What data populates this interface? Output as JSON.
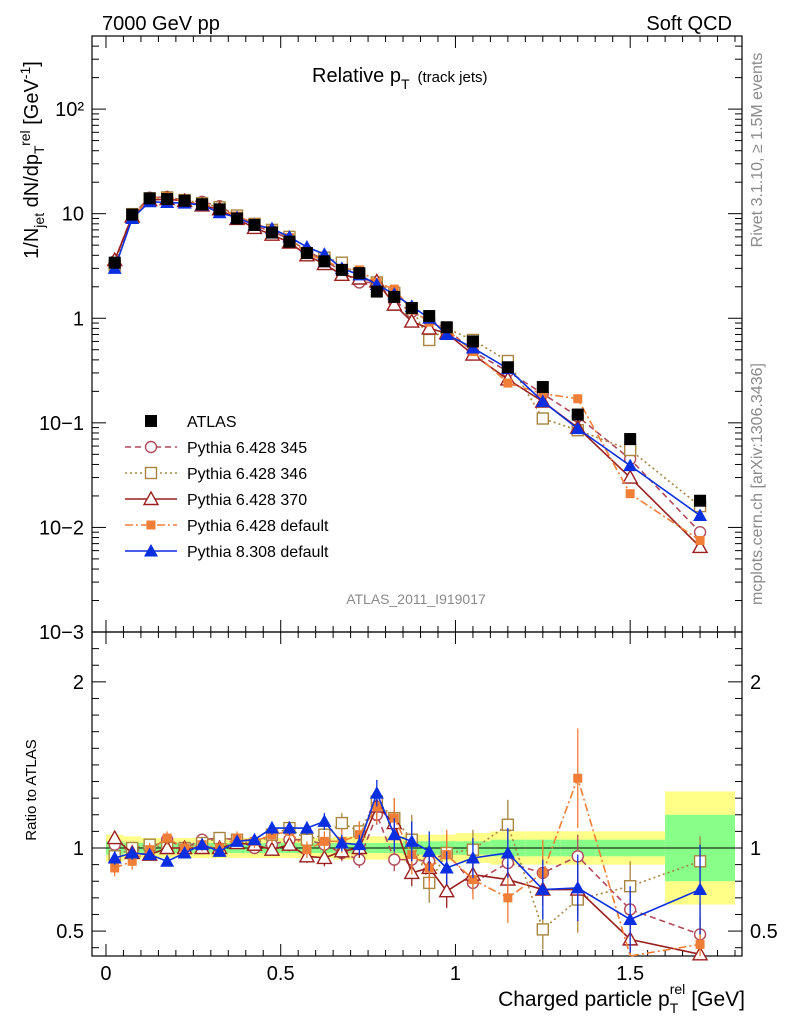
{
  "header": {
    "left": "7000 GeV pp",
    "right": "Soft QCD"
  },
  "side": {
    "rivet": "Rivet 3.1.10, ≥ 1.5M events",
    "mcplots": "mcplots.cern.ch [arXiv:1306.3436]"
  },
  "colors": {
    "atlas": "#000000",
    "p345": "#b04a5a",
    "p346": "#a88540",
    "p370": "#9a1f1f",
    "p6def": "#f07e36",
    "p8def": "#0a2fe0",
    "band_outer": "#ffff88",
    "band_inner": "#88ff88"
  },
  "chart_data": [
    {
      "type": "line",
      "title": "Relative p_T (track jets)",
      "title_main": "Relative p",
      "title_sub": "T",
      "title_extra": "(track jets)",
      "ylabel": "1/N_jet dN/dp_T^rel [GeV^-1]",
      "xlabel": "",
      "yscale": "log",
      "xlim": [
        -0.04,
        1.82
      ],
      "ylim": [
        0.001,
        500
      ],
      "y_ticks": [
        {
          "value": 0.001,
          "label": "10−3"
        },
        {
          "value": 0.01,
          "label": "10−2"
        },
        {
          "value": 0.1,
          "label": "10−1"
        },
        {
          "value": 1,
          "label": "1"
        },
        {
          "value": 10,
          "label": "10"
        },
        {
          "value": 100,
          "label": "10²"
        }
      ],
      "reference_label": "ATLAS_2011_I919017",
      "x": [
        0.025,
        0.075,
        0.125,
        0.175,
        0.225,
        0.275,
        0.325,
        0.375,
        0.425,
        0.475,
        0.525,
        0.575,
        0.625,
        0.675,
        0.725,
        0.775,
        0.825,
        0.875,
        0.925,
        0.975,
        1.05,
        1.15,
        1.25,
        1.35,
        1.5,
        1.7
      ],
      "series": [
        {
          "name": "ATLAS",
          "key": "atlas",
          "marker": "square-filled",
          "values": [
            3.4,
            9.8,
            14.0,
            13.8,
            13.3,
            12.3,
            11.0,
            9.0,
            7.8,
            6.6,
            5.4,
            4.2,
            3.5,
            2.9,
            2.7,
            1.8,
            1.6,
            1.25,
            1.05,
            0.82,
            0.6,
            0.34,
            0.22,
            0.12,
            0.07,
            0.018
          ]
        },
        {
          "name": "Pythia 6.428 345",
          "key": "p345",
          "marker": "circle-open",
          "dash": "6,4",
          "values": [
            3.5,
            9.8,
            14.2,
            14.5,
            13.4,
            13.0,
            11.8,
            9.5,
            7.6,
            6.8,
            5.7,
            4.4,
            3.6,
            2.8,
            2.2,
            2.2,
            1.45,
            1.15,
            0.95,
            0.8,
            0.48,
            0.31,
            0.19,
            0.115,
            0.045,
            0.009
          ]
        },
        {
          "name": "Pythia 6.428 346",
          "key": "p346",
          "marker": "square-open",
          "dash": "2,3",
          "values": [
            3.2,
            9.9,
            14.0,
            14.3,
            13.5,
            12.6,
            11.5,
            9.6,
            8.0,
            7.0,
            6.0,
            4.1,
            3.8,
            3.4,
            2.5,
            2.2,
            1.75,
            1.25,
            0.62,
            0.8,
            0.62,
            0.39,
            0.11,
            0.085,
            0.055,
            0.016
          ]
        },
        {
          "name": "Pythia 6.428 370",
          "key": "p370",
          "marker": "triangle-open",
          "dash": "",
          "values": [
            3.6,
            9.4,
            13.5,
            13.8,
            13.2,
            12.0,
            11.0,
            8.9,
            7.3,
            6.3,
            5.3,
            4.0,
            3.3,
            2.6,
            2.4,
            2.25,
            1.35,
            0.93,
            0.8,
            0.72,
            0.45,
            0.26,
            0.16,
            0.09,
            0.03,
            0.0065
          ]
        },
        {
          "name": "Pythia 6.428 default",
          "key": "p6def",
          "marker": "square-filled-small",
          "dash": "8,3,2,3",
          "values": [
            3.0,
            9.0,
            14.0,
            14.5,
            13.0,
            12.5,
            11.2,
            9.5,
            8.1,
            7.0,
            5.9,
            4.1,
            3.6,
            3.0,
            2.9,
            2.2,
            1.9,
            1.2,
            0.92,
            0.78,
            0.48,
            0.24,
            0.19,
            0.17,
            0.021,
            0.0075
          ]
        },
        {
          "name": "Pythia 8.308 default",
          "key": "p8def",
          "marker": "triangle-filled",
          "dash": "",
          "values": [
            3.0,
            9.0,
            13.0,
            12.8,
            12.6,
            12.1,
            10.2,
            9.2,
            7.8,
            7.2,
            6.0,
            4.8,
            4.1,
            3.0,
            2.6,
            2.1,
            1.7,
            1.3,
            1.0,
            0.7,
            0.52,
            0.33,
            0.16,
            0.088,
            0.039,
            0.013
          ]
        }
      ]
    },
    {
      "type": "line",
      "title": "",
      "xlabel": "Charged particle p_T^rel [GeV]",
      "xlabel_main": "Charged particle p",
      "xlabel_sub": "T",
      "xlabel_sup": "rel",
      "xlabel_unit": "[GeV]",
      "ylabel": "Ratio to ATLAS",
      "xlim": [
        -0.04,
        1.82
      ],
      "ylim": [
        0.35,
        2.3
      ],
      "x_ticks": [
        {
          "value": 0,
          "label": "0"
        },
        {
          "value": 0.5,
          "label": "0.5"
        },
        {
          "value": 1,
          "label": "1"
        },
        {
          "value": 1.5,
          "label": "1.5"
        }
      ],
      "y_ticks": [
        {
          "value": 0.5,
          "label": "0.5"
        },
        {
          "value": 1,
          "label": "1"
        },
        {
          "value": 2,
          "label": "2"
        }
      ],
      "band_edges": [
        0.0,
        0.05,
        0.1,
        0.15,
        0.2,
        0.25,
        0.3,
        0.35,
        0.4,
        0.45,
        0.5,
        0.55,
        0.6,
        0.65,
        0.7,
        0.75,
        0.8,
        0.85,
        0.9,
        0.95,
        1.0,
        1.1,
        1.2,
        1.3,
        1.4,
        1.6,
        1.8
      ],
      "band_outer": [
        0.08,
        0.07,
        0.06,
        0.06,
        0.06,
        0.06,
        0.06,
        0.06,
        0.06,
        0.06,
        0.06,
        0.06,
        0.06,
        0.07,
        0.07,
        0.07,
        0.07,
        0.08,
        0.08,
        0.08,
        0.09,
        0.1,
        0.1,
        0.1,
        0.1,
        0.34
      ],
      "band_inner": [
        0.04,
        0.03,
        0.03,
        0.03,
        0.03,
        0.03,
        0.03,
        0.03,
        0.03,
        0.03,
        0.03,
        0.03,
        0.03,
        0.03,
        0.03,
        0.03,
        0.03,
        0.04,
        0.04,
        0.04,
        0.04,
        0.05,
        0.05,
        0.05,
        0.05,
        0.2
      ],
      "x": [
        0.025,
        0.075,
        0.125,
        0.175,
        0.225,
        0.275,
        0.325,
        0.375,
        0.425,
        0.475,
        0.525,
        0.575,
        0.625,
        0.675,
        0.725,
        0.775,
        0.825,
        0.875,
        0.925,
        0.975,
        1.05,
        1.15,
        1.25,
        1.35,
        1.5,
        1.7
      ],
      "series": [
        {
          "name": "Pythia 6.428 345",
          "key": "p345",
          "values": [
            1.02,
            0.98,
            1.0,
            1.05,
            1.0,
            1.05,
            1.06,
            1.05,
            1.0,
            1.02,
            1.05,
            1.05,
            1.02,
            0.97,
            0.93,
            1.2,
            0.93,
            0.93,
            0.92,
            0.97,
            0.79,
            0.91,
            0.85,
            0.95,
            0.63,
            0.48
          ],
          "err": [
            0.03,
            0.03,
            0.03,
            0.03,
            0.03,
            0.03,
            0.03,
            0.03,
            0.03,
            0.03,
            0.03,
            0.04,
            0.04,
            0.05,
            0.05,
            0.06,
            0.07,
            0.08,
            0.09,
            0.1,
            0.06,
            0.08,
            0.1,
            0.13,
            0.12,
            0.1
          ]
        },
        {
          "name": "Pythia 6.428 346",
          "key": "p346",
          "values": [
            0.95,
            1.0,
            1.02,
            1.0,
            1.0,
            1.03,
            1.06,
            1.05,
            1.02,
            1.08,
            1.12,
            1.05,
            1.08,
            1.15,
            1.1,
            1.28,
            1.18,
            1.05,
            0.79,
            0.97,
            0.99,
            1.14,
            0.51,
            0.69,
            0.77,
            0.92
          ],
          "err": [
            0.03,
            0.03,
            0.03,
            0.03,
            0.03,
            0.03,
            0.03,
            0.03,
            0.04,
            0.04,
            0.04,
            0.05,
            0.05,
            0.06,
            0.06,
            0.09,
            0.12,
            0.15,
            0.12,
            0.12,
            0.12,
            0.15,
            0.12,
            0.2,
            0.15,
            0.15
          ]
        },
        {
          "name": "Pythia 6.428 370",
          "key": "p370",
          "values": [
            1.06,
            0.97,
            0.96,
            1.0,
            1.0,
            1.0,
            1.0,
            1.03,
            1.02,
            0.99,
            1.02,
            0.95,
            0.94,
            0.98,
            1.0,
            1.25,
            1.15,
            0.85,
            0.88,
            0.74,
            0.84,
            0.81,
            0.75,
            0.75,
            0.45,
            0.36
          ],
          "err": [
            0.03,
            0.03,
            0.03,
            0.03,
            0.03,
            0.03,
            0.03,
            0.03,
            0.03,
            0.03,
            0.04,
            0.04,
            0.05,
            0.05,
            0.06,
            0.08,
            0.08,
            0.08,
            0.08,
            0.1,
            0.08,
            0.1,
            0.1,
            0.15,
            0.12,
            0.15
          ]
        },
        {
          "name": "Pythia 6.428 default",
          "key": "p6def",
          "values": [
            0.88,
            0.92,
            0.99,
            1.06,
            1.0,
            1.02,
            1.0,
            1.06,
            1.04,
            1.08,
            1.1,
            0.99,
            1.04,
            1.04,
            1.08,
            1.25,
            1.18,
            0.96,
            0.88,
            0.96,
            0.81,
            0.7,
            0.85,
            1.42,
            0.3,
            0.42
          ],
          "err": [
            0.05,
            0.05,
            0.04,
            0.04,
            0.04,
            0.04,
            0.04,
            0.04,
            0.04,
            0.05,
            0.05,
            0.05,
            0.06,
            0.07,
            0.08,
            0.1,
            0.12,
            0.12,
            0.12,
            0.15,
            0.12,
            0.15,
            0.2,
            0.3,
            0.2,
            0.25
          ]
        },
        {
          "name": "Pythia 8.308 default",
          "key": "p8def",
          "values": [
            0.94,
            0.97,
            0.96,
            0.92,
            0.97,
            1.02,
            0.98,
            1.04,
            1.05,
            1.12,
            1.12,
            1.12,
            1.16,
            1.03,
            1.02,
            1.33,
            1.08,
            1.04,
            0.98,
            0.88,
            0.94,
            0.97,
            0.75,
            0.76,
            0.57,
            0.75
          ],
          "err": [
            0.04,
            0.04,
            0.03,
            0.03,
            0.03,
            0.03,
            0.03,
            0.03,
            0.03,
            0.04,
            0.04,
            0.04,
            0.05,
            0.05,
            0.06,
            0.08,
            0.1,
            0.12,
            0.12,
            0.1,
            0.12,
            0.15,
            0.18,
            0.2,
            0.2,
            0.27
          ]
        }
      ]
    }
  ]
}
